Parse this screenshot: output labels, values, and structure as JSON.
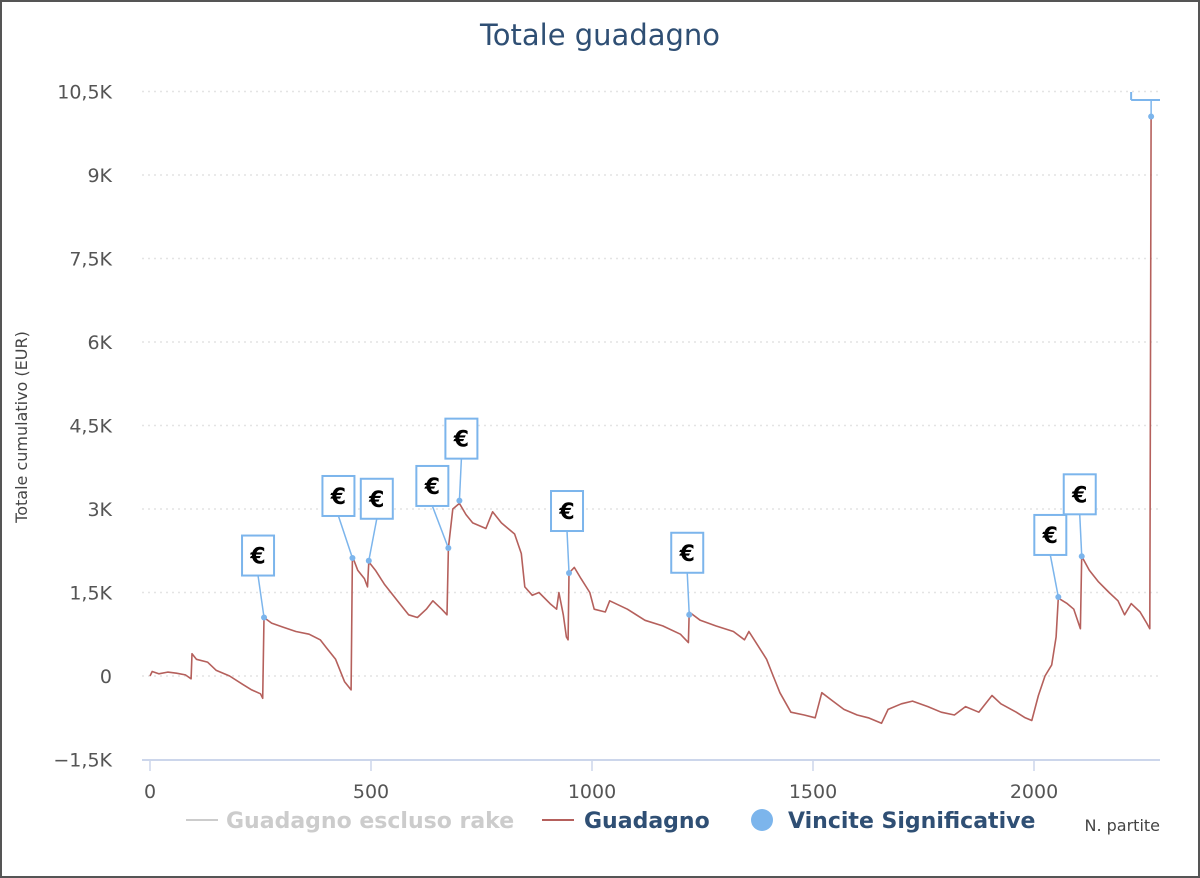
{
  "chart_data": {
    "type": "line",
    "title": "Totale guadagno",
    "xlabel": "N. partite",
    "ylabel": "Totale cumulativo (EUR)",
    "xlim": [
      0,
      2270
    ],
    "ylim": [
      -1500,
      10500
    ],
    "x_ticks": [
      {
        "value": 0,
        "label": "0"
      },
      {
        "value": 500,
        "label": "500"
      },
      {
        "value": 1000,
        "label": "1000"
      },
      {
        "value": 1500,
        "label": "1500"
      },
      {
        "value": 2000,
        "label": "2000"
      }
    ],
    "y_ticks": [
      {
        "value": -1500,
        "label": "−1,5K"
      },
      {
        "value": 0,
        "label": "0"
      },
      {
        "value": 1500,
        "label": "1,5K"
      },
      {
        "value": 3000,
        "label": "3K"
      },
      {
        "value": 4500,
        "label": "4,5K"
      },
      {
        "value": 6000,
        "label": "6K"
      },
      {
        "value": 7500,
        "label": "7,5K"
      },
      {
        "value": 9000,
        "label": "9K"
      },
      {
        "value": 10500,
        "label": "10,5K"
      }
    ],
    "grid": true,
    "legend_position": "bottom",
    "legend": [
      {
        "name": "Guadagno escluso rake",
        "color": "#cccccc",
        "marker": "line",
        "hidden": true
      },
      {
        "name": "Guadagno",
        "color": "#b5605c",
        "marker": "line",
        "hidden": false
      },
      {
        "name": "Vincite Significative",
        "color": "#7cb5ec",
        "marker": "circle",
        "hidden": false
      }
    ],
    "series": [
      {
        "name": "Guadagno",
        "color": "#b5605c",
        "points": [
          [
            0,
            0
          ],
          [
            5,
            80
          ],
          [
            20,
            40
          ],
          [
            40,
            70
          ],
          [
            60,
            50
          ],
          [
            80,
            20
          ],
          [
            93,
            -50
          ],
          [
            95,
            400
          ],
          [
            105,
            300
          ],
          [
            130,
            250
          ],
          [
            150,
            100
          ],
          [
            180,
            0
          ],
          [
            210,
            -150
          ],
          [
            230,
            -250
          ],
          [
            250,
            -320
          ],
          [
            255,
            -400
          ],
          [
            258,
            1050
          ],
          [
            275,
            950
          ],
          [
            300,
            880
          ],
          [
            330,
            800
          ],
          [
            360,
            750
          ],
          [
            385,
            650
          ],
          [
            400,
            500
          ],
          [
            420,
            300
          ],
          [
            440,
            -100
          ],
          [
            455,
            -250
          ],
          [
            458,
            2150
          ],
          [
            470,
            1900
          ],
          [
            485,
            1750
          ],
          [
            492,
            1600
          ],
          [
            495,
            2050
          ],
          [
            510,
            1900
          ],
          [
            530,
            1650
          ],
          [
            545,
            1500
          ],
          [
            565,
            1300
          ],
          [
            585,
            1100
          ],
          [
            605,
            1050
          ],
          [
            625,
            1200
          ],
          [
            640,
            1350
          ],
          [
            660,
            1200
          ],
          [
            672,
            1100
          ],
          [
            675,
            2300
          ],
          [
            685,
            3000
          ],
          [
            700,
            3100
          ],
          [
            715,
            2900
          ],
          [
            730,
            2750
          ],
          [
            760,
            2650
          ],
          [
            775,
            2950
          ],
          [
            795,
            2750
          ],
          [
            825,
            2550
          ],
          [
            840,
            2200
          ],
          [
            848,
            1600
          ],
          [
            865,
            1450
          ],
          [
            880,
            1500
          ],
          [
            905,
            1300
          ],
          [
            920,
            1200
          ],
          [
            925,
            1500
          ],
          [
            935,
            1100
          ],
          [
            942,
            700
          ],
          [
            946,
            650
          ],
          [
            948,
            1850
          ],
          [
            960,
            1950
          ],
          [
            975,
            1750
          ],
          [
            995,
            1500
          ],
          [
            1005,
            1200
          ],
          [
            1030,
            1150
          ],
          [
            1040,
            1350
          ],
          [
            1080,
            1200
          ],
          [
            1120,
            1000
          ],
          [
            1160,
            900
          ],
          [
            1200,
            750
          ],
          [
            1218,
            600
          ],
          [
            1220,
            1150
          ],
          [
            1245,
            1000
          ],
          [
            1280,
            900
          ],
          [
            1320,
            800
          ],
          [
            1345,
            650
          ],
          [
            1355,
            800
          ],
          [
            1375,
            550
          ],
          [
            1395,
            300
          ],
          [
            1410,
            0
          ],
          [
            1425,
            -300
          ],
          [
            1450,
            -650
          ],
          [
            1480,
            -700
          ],
          [
            1505,
            -750
          ],
          [
            1520,
            -300
          ],
          [
            1545,
            -450
          ],
          [
            1570,
            -600
          ],
          [
            1600,
            -700
          ],
          [
            1625,
            -750
          ],
          [
            1655,
            -850
          ],
          [
            1670,
            -600
          ],
          [
            1700,
            -500
          ],
          [
            1725,
            -450
          ],
          [
            1760,
            -550
          ],
          [
            1790,
            -650
          ],
          [
            1820,
            -700
          ],
          [
            1845,
            -550
          ],
          [
            1875,
            -650
          ],
          [
            1905,
            -350
          ],
          [
            1925,
            -500
          ],
          [
            1960,
            -650
          ],
          [
            1980,
            -750
          ],
          [
            1995,
            -800
          ],
          [
            2010,
            -350
          ],
          [
            2025,
            0
          ],
          [
            2040,
            200
          ],
          [
            2050,
            700
          ],
          [
            2055,
            1400
          ],
          [
            2075,
            1300
          ],
          [
            2090,
            1200
          ],
          [
            2105,
            850
          ],
          [
            2108,
            2150
          ],
          [
            2125,
            1900
          ],
          [
            2145,
            1700
          ],
          [
            2170,
            1500
          ],
          [
            2190,
            1350
          ],
          [
            2205,
            1100
          ],
          [
            2220,
            1300
          ],
          [
            2240,
            1150
          ],
          [
            2255,
            950
          ],
          [
            2262,
            850
          ],
          [
            2263,
            3500
          ],
          [
            2265,
            10050
          ]
        ]
      },
      {
        "name": "Vincite Significative",
        "color": "#7cb5ec",
        "points": [
          [
            258,
            1050
          ],
          [
            458,
            2120
          ],
          [
            495,
            2070
          ],
          [
            675,
            2300
          ],
          [
            700,
            3150
          ],
          [
            948,
            1850
          ],
          [
            1220,
            1100
          ],
          [
            2055,
            1420
          ],
          [
            2108,
            2150
          ],
          [
            2265,
            10050
          ]
        ]
      }
    ],
    "marker_label": "€"
  }
}
